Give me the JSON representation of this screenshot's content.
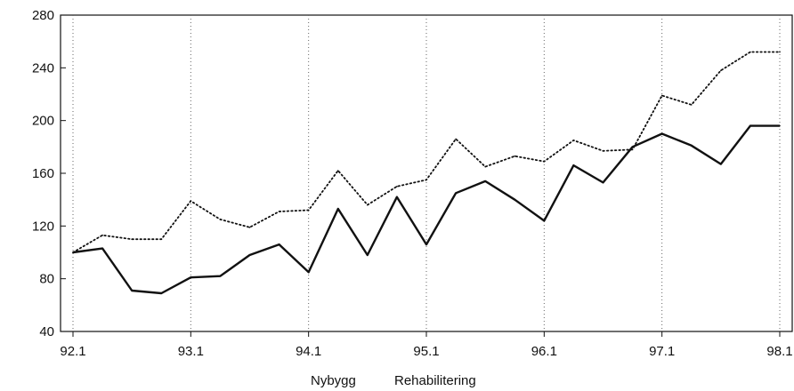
{
  "chart_data": {
    "type": "line",
    "x": [
      "92.1",
      "92.2",
      "92.3",
      "92.4",
      "93.1",
      "93.2",
      "93.3",
      "93.4",
      "94.1",
      "94.2",
      "94.3",
      "94.4",
      "95.1",
      "95.2",
      "95.3",
      "95.4",
      "96.1",
      "96.2",
      "96.3",
      "96.4",
      "97.1",
      "97.2",
      "97.3",
      "97.4",
      "98.1"
    ],
    "xticks": [
      "92.1",
      "93.1",
      "94.1",
      "95.1",
      "96.1",
      "97.1",
      "98.1"
    ],
    "yticks": [
      "40",
      "80",
      "120",
      "160",
      "200",
      "240",
      "280"
    ],
    "ylim": [
      40,
      280
    ],
    "series": [
      {
        "name": "Nybygg",
        "style": "solid",
        "color": "#111111",
        "values": [
          100,
          103,
          71,
          69,
          81,
          82,
          98,
          106,
          85,
          133,
          98,
          142,
          106,
          145,
          154,
          140,
          124,
          166,
          153,
          180,
          190,
          181,
          167,
          196,
          196
        ]
      },
      {
        "name": "Rehabilitering",
        "style": "dotted",
        "color": "#111111",
        "values": [
          100,
          113,
          110,
          110,
          139,
          125,
          119,
          131,
          132,
          162,
          136,
          150,
          155,
          186,
          165,
          173,
          169,
          185,
          177,
          178,
          219,
          212,
          238,
          252,
          252
        ]
      }
    ],
    "grid": "vertical-dotted-at-year-starts",
    "legend_position": "bottom-center"
  }
}
